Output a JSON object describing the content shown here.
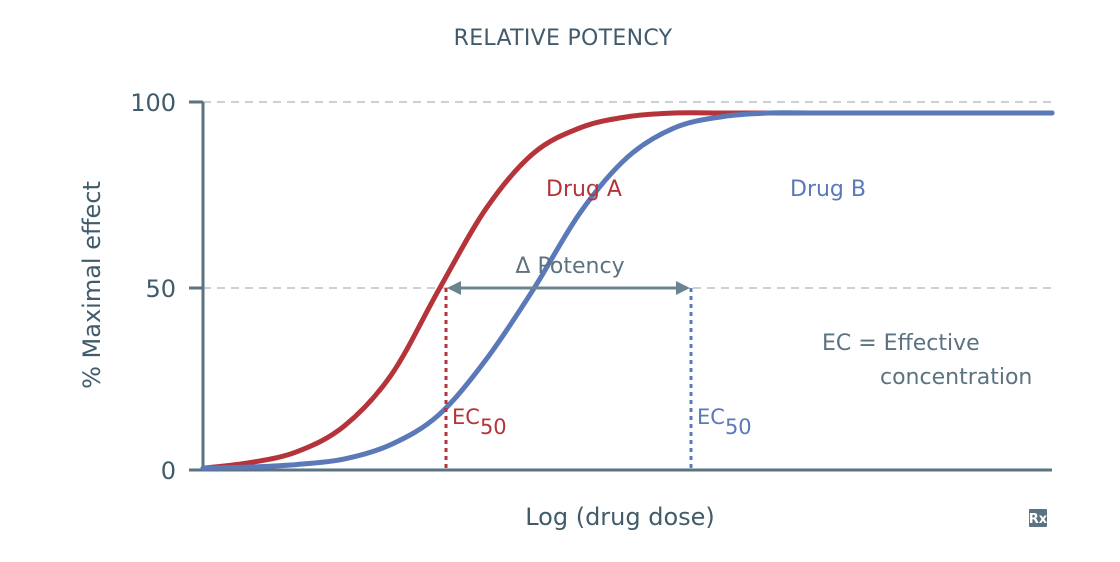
{
  "chart_data": {
    "type": "line",
    "title": "RELATIVE POTENCY",
    "xlabel": "Log (drug dose)",
    "ylabel": "% Maximal effect",
    "ylim": [
      0,
      100
    ],
    "y_ticks": [
      "0",
      "50",
      "100"
    ],
    "grid": "dashed horizontal lines at 50 and 100",
    "series": [
      {
        "name": "Drug A",
        "color": "#b5343a",
        "values": [
          0.5,
          2.0,
          5.0,
          12.0,
          26.0,
          49.0,
          71.0,
          86.0,
          93.0,
          96.0,
          97.0,
          97.0,
          97.0,
          97.0,
          97.0,
          97.0,
          97.0,
          97.0,
          97.0
        ]
      },
      {
        "name": "Drug B",
        "color": "#5b79b8",
        "values": [
          0.5,
          0.8,
          1.5,
          3.0,
          7.0,
          15.0,
          30.0,
          49.0,
          70.0,
          85.0,
          93.0,
          96.0,
          97.0,
          97.0,
          97.0,
          97.0,
          97.0,
          97.0,
          97.0
        ]
      }
    ],
    "x": [
      0,
      0.5,
      1,
      1.5,
      2,
      2.5,
      3,
      3.5,
      4,
      4.5,
      5,
      5.5,
      6,
      6.5,
      7,
      7.5,
      8,
      8.5,
      9
    ],
    "annotations": {
      "potency_label": "Potency",
      "delta_symbol": "Δ",
      "ec_prefix": "EC",
      "ec_subscript": "50",
      "ec_definition_line1": "EC = Effective",
      "ec_definition_line2": "concentration"
    }
  },
  "badge": {
    "text": "Rx"
  },
  "colors": {
    "axis": "#5b7380",
    "grid": "#b9c4c9",
    "arrow": "#6c848f"
  }
}
